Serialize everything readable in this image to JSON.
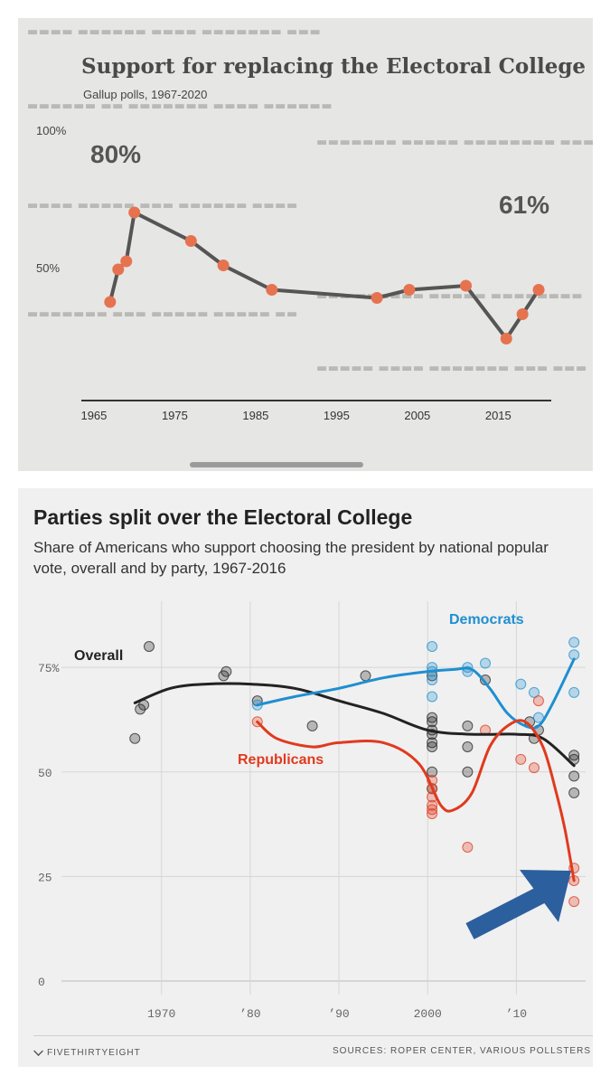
{
  "panel1": {
    "title": "Support for replacing the Electoral College",
    "subtitle": "Gallup polls, 1967-2020",
    "y_tick_labels": [
      "100%",
      "50%"
    ],
    "annotations": {
      "first": "80%",
      "last": "61%"
    },
    "colors": {
      "line": "#555555",
      "points": "#e67350",
      "background": "#e6e6e4"
    },
    "chart_data": {
      "type": "line",
      "title": "Support for replacing the Electoral College",
      "subtitle": "Gallup polls, 1967-2020",
      "x": [
        1967,
        1968,
        1969,
        1970,
        1977,
        1981,
        1987,
        2000,
        2004,
        2011,
        2016,
        2018,
        2020
      ],
      "y": [
        58,
        66,
        68,
        80,
        73,
        67,
        61,
        59,
        61,
        62,
        49,
        55,
        61
      ],
      "xticks": [
        1965,
        1975,
        1985,
        1995,
        2005,
        2015
      ],
      "yticks": [
        "50%",
        "100%"
      ],
      "ylim": [
        40,
        100
      ],
      "xlim": [
        1964,
        2021
      ]
    }
  },
  "panel2": {
    "title": "Parties split over the Electoral College",
    "subtitle": "Share of Americans who support choosing the president by national popular vote, overall and by party, 1967-2016",
    "footer_brand": "FIVETHIRTYEIGHT",
    "footer_source": "SOURCES: ROPER CENTER, VARIOUS POLLSTERS",
    "arrow_color": "#2c5f9e",
    "chart_data": {
      "type": "scatter",
      "title": "Parties split over the Electoral College",
      "subtitle": "Share of Americans who support choosing the president by national popular vote, overall and by party, 1967-2016",
      "xlim": [
        1963,
        2017.5
      ],
      "ylim": [
        0,
        80
      ],
      "xticks": [
        1970,
        1980,
        1990,
        2000,
        2010
      ],
      "xtick_labels": [
        "1970",
        "’80",
        "’90",
        "2000",
        "’10"
      ],
      "yticks": [
        0,
        25,
        50,
        75
      ],
      "ytick_labels": [
        "0",
        "25",
        "50",
        "75%"
      ],
      "grid": true,
      "series": [
        {
          "name": "Overall",
          "color": "#222222",
          "points": [
            [
              1967,
              58
            ],
            [
              1967.6,
              65
            ],
            [
              1968,
              66
            ],
            [
              1968.6,
              80
            ],
            [
              1977,
              73
            ],
            [
              1977.3,
              74
            ],
            [
              1980.8,
              67
            ],
            [
              1987,
              61
            ],
            [
              1993,
              73
            ],
            [
              2000.5,
              73
            ],
            [
              2000.5,
              63
            ],
            [
              2000.5,
              62
            ],
            [
              2000.5,
              60
            ],
            [
              2000.5,
              59
            ],
            [
              2000.5,
              57
            ],
            [
              2000.5,
              56
            ],
            [
              2000.5,
              50
            ],
            [
              2000.5,
              46
            ],
            [
              2004.5,
              61
            ],
            [
              2004.5,
              56
            ],
            [
              2004.5,
              50
            ],
            [
              2006.5,
              72
            ],
            [
              2011.5,
              62
            ],
            [
              2012,
              58
            ],
            [
              2012.5,
              60
            ],
            [
              2016.5,
              54
            ],
            [
              2016.5,
              53
            ],
            [
              2016.5,
              49
            ],
            [
              2016.5,
              45
            ]
          ],
          "trend": [
            [
              1967,
              66.5
            ],
            [
              1971,
              70
            ],
            [
              1975,
              71
            ],
            [
              1980,
              71
            ],
            [
              1985,
              70
            ],
            [
              1990,
              67
            ],
            [
              1995,
              64
            ],
            [
              2000,
              60
            ],
            [
              2005,
              59
            ],
            [
              2010,
              59
            ],
            [
              2013,
              58
            ],
            [
              2016.5,
              51.5
            ]
          ]
        },
        {
          "name": "Democrats",
          "color": "#1f8fd0",
          "points": [
            [
              1980.8,
              66
            ],
            [
              2000.5,
              80
            ],
            [
              2000.5,
              75
            ],
            [
              2000.5,
              74
            ],
            [
              2000.5,
              72
            ],
            [
              2000.5,
              68
            ],
            [
              2004.5,
              75
            ],
            [
              2004.5,
              74
            ],
            [
              2006.5,
              76
            ],
            [
              2010.5,
              71
            ],
            [
              2012,
              69
            ],
            [
              2012.5,
              63
            ],
            [
              2016.5,
              81
            ],
            [
              2016.5,
              78
            ],
            [
              2016.5,
              69
            ]
          ],
          "trend": [
            [
              1980.8,
              66
            ],
            [
              1985,
              68
            ],
            [
              1990,
              70
            ],
            [
              1995,
              72.5
            ],
            [
              2000,
              74
            ],
            [
              2003,
              74.5
            ],
            [
              2005,
              74.5
            ],
            [
              2007,
              70
            ],
            [
              2009,
              64
            ],
            [
              2011,
              61
            ],
            [
              2012.5,
              61
            ],
            [
              2014,
              66
            ],
            [
              2016.5,
              77
            ]
          ]
        },
        {
          "name": "Republicans",
          "color": "#e03a1e",
          "points": [
            [
              1980.8,
              62
            ],
            [
              2000.5,
              48
            ],
            [
              2000.5,
              46
            ],
            [
              2000.5,
              44
            ],
            [
              2000.5,
              42
            ],
            [
              2000.5,
              41
            ],
            [
              2000.5,
              40
            ],
            [
              2004.5,
              32
            ],
            [
              2006.5,
              60
            ],
            [
              2010.5,
              53
            ],
            [
              2012,
              51
            ],
            [
              2012.5,
              67
            ],
            [
              2016.5,
              27
            ],
            [
              2016.5,
              24
            ],
            [
              2016.5,
              19
            ]
          ],
          "trend": [
            [
              1980.8,
              62
            ],
            [
              1983,
              58
            ],
            [
              1987,
              56
            ],
            [
              1990,
              57
            ],
            [
              1995,
              57
            ],
            [
              1999,
              52
            ],
            [
              2001.5,
              42
            ],
            [
              2003,
              41
            ],
            [
              2005,
              45
            ],
            [
              2007,
              56
            ],
            [
              2009,
              61
            ],
            [
              2011,
              62
            ],
            [
              2013,
              56
            ],
            [
              2014.5,
              45
            ],
            [
              2015.5,
              36
            ],
            [
              2016.5,
              24
            ]
          ]
        }
      ]
    }
  }
}
